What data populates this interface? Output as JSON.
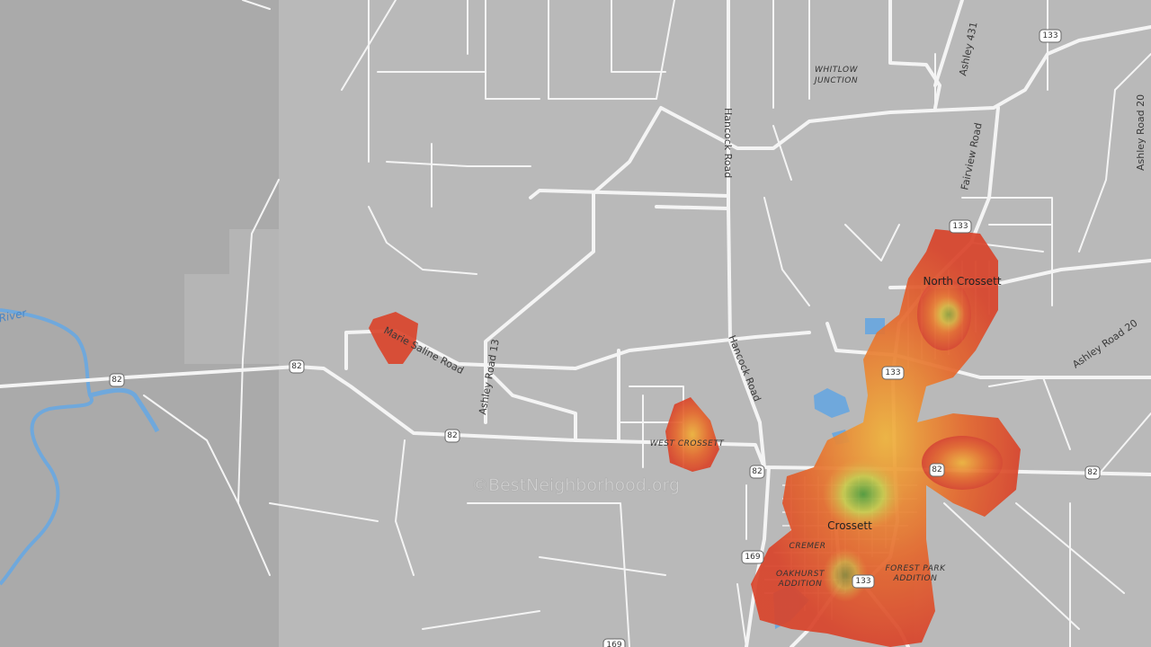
{
  "map": {
    "places": {
      "whitlow": [
        "WHITLOW",
        "JUNCTION"
      ],
      "north_crossett": "North Crossett",
      "west_crossett": "WEST CROSSETT",
      "crossett": "Crossett",
      "cremer": "CREMER",
      "oakhurst": [
        "OAKHURST",
        "ADDITION"
      ],
      "forest_park": [
        "FOREST PARK",
        "ADDITION"
      ]
    },
    "roads": {
      "ashley_431": "Ashley 431",
      "hancock_road": "Hancock Road",
      "fairview_road": "Fairview Road",
      "ashley_road_20": "Ashley Road 20",
      "marie_saline_road": "Marie Saline Road",
      "ashley_road_13": "Ashley Road 13",
      "river": "Saline River"
    },
    "shields": {
      "us_82": "82",
      "ar_133": "133",
      "ar_169": "169"
    },
    "watermark": "©BestNeighborhood.org"
  }
}
